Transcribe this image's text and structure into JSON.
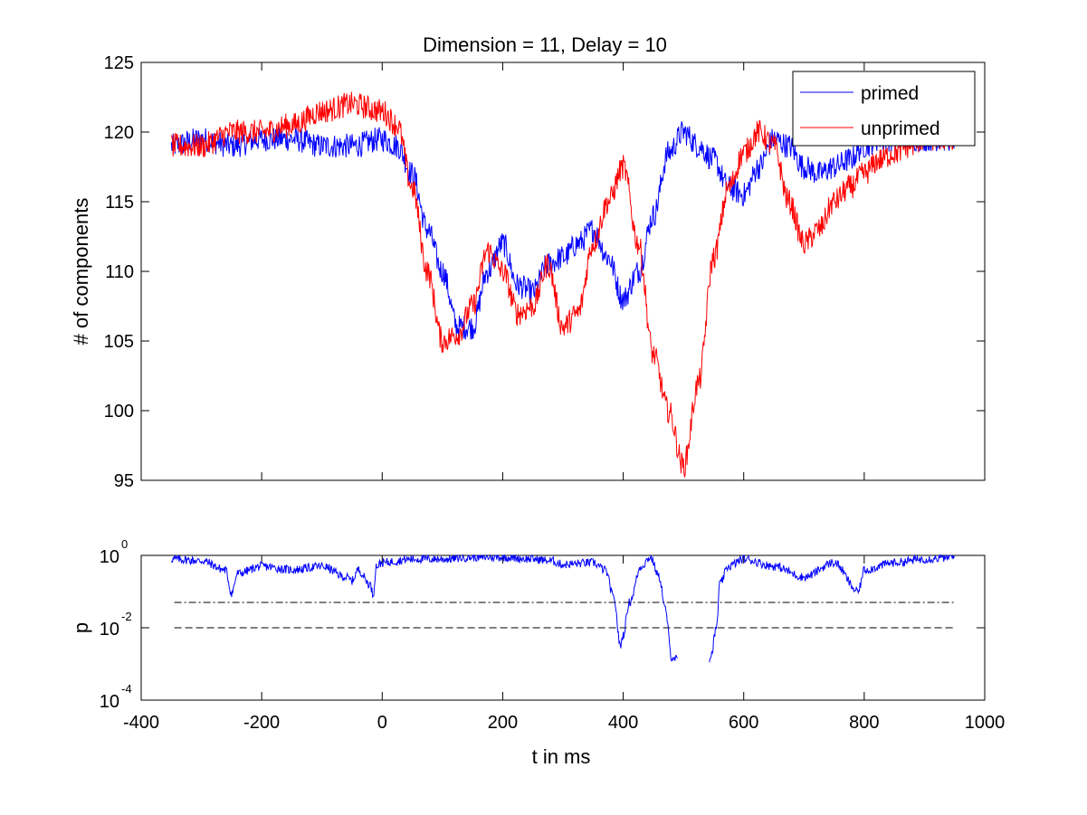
{
  "chart_data": [
    {
      "type": "line",
      "title": "Dimension  = 11, Delay = 10",
      "xlabel": "",
      "ylabel": "# of components",
      "xlim": [
        -400,
        1000
      ],
      "ylim": [
        95,
        125
      ],
      "yticks": [
        "95",
        "100",
        "105",
        "110",
        "115",
        "120",
        "125"
      ],
      "grid": false,
      "legend_position": "top-right",
      "series": [
        {
          "name": "primed",
          "color": "#0000ff",
          "x": [
            -350,
            -300,
            -250,
            -200,
            -150,
            -100,
            -50,
            0,
            25,
            50,
            75,
            100,
            125,
            150,
            175,
            200,
            225,
            250,
            275,
            300,
            325,
            350,
            375,
            400,
            425,
            450,
            475,
            500,
            525,
            550,
            575,
            600,
            625,
            650,
            675,
            700,
            725,
            750,
            775,
            800,
            825,
            850,
            875,
            900,
            925,
            950
          ],
          "y": [
            119,
            119.5,
            119,
            119.5,
            119.5,
            119,
            119,
            119.5,
            119,
            117,
            113,
            110,
            106,
            106,
            110,
            112,
            109,
            108.5,
            110.5,
            111,
            112,
            113,
            111,
            108,
            110,
            114,
            118.5,
            120,
            119,
            118,
            116,
            115.5,
            117.5,
            119.5,
            119,
            117.5,
            117,
            117.5,
            118,
            119,
            119.5,
            119.5,
            119.5,
            119.5,
            119.5,
            119.5
          ]
        },
        {
          "name": "unprimed",
          "color": "#ff0000",
          "x": [
            -350,
            -300,
            -250,
            -200,
            -150,
            -100,
            -50,
            0,
            25,
            50,
            75,
            100,
            125,
            150,
            175,
            200,
            225,
            250,
            275,
            300,
            325,
            350,
            375,
            400,
            425,
            450,
            475,
            500,
            525,
            550,
            575,
            600,
            625,
            650,
            675,
            700,
            725,
            750,
            775,
            800,
            825,
            850,
            875,
            900,
            925,
            950
          ],
          "y": [
            119,
            119,
            120,
            120,
            120.5,
            121.5,
            122,
            121.5,
            120.5,
            116,
            110,
            105,
            105.5,
            107.5,
            111.5,
            110,
            107,
            107.5,
            110.5,
            106,
            107,
            112,
            115,
            117.5,
            112,
            104,
            100,
            96,
            102,
            111,
            116,
            118.5,
            120,
            119,
            115,
            112,
            113,
            115,
            116,
            117,
            118,
            118.5,
            119,
            119.5,
            119.5,
            119.5
          ]
        }
      ]
    },
    {
      "type": "line",
      "title": "",
      "xlabel": "t in ms",
      "ylabel": "p",
      "xlim": [
        -400,
        1000
      ],
      "xticks": [
        "-400",
        "-200",
        "0",
        "200",
        "400",
        "600",
        "800",
        "1000"
      ],
      "y_scale": "log",
      "ylim_exponent": [
        -4,
        0
      ],
      "ytick_base": "10",
      "ytick_exponents": [
        "0",
        "-2",
        "-4"
      ],
      "grid": false,
      "series": [
        {
          "color": "#0000ff",
          "x": [
            -350,
            -300,
            -260,
            -250,
            -240,
            -200,
            -150,
            -100,
            -60,
            -50,
            -40,
            -20,
            -15,
            -10,
            0,
            50,
            100,
            150,
            200,
            250,
            280,
            300,
            350,
            370,
            385,
            395,
            400,
            410,
            430,
            445,
            460,
            470,
            480,
            500,
            520,
            540,
            545,
            555,
            560,
            575,
            600,
            650,
            700,
            750,
            790,
            800,
            850,
            900,
            950
          ],
          "log10p": [
            -0.1,
            -0.15,
            -0.4,
            -1.05,
            -0.5,
            -0.3,
            -0.4,
            -0.3,
            -0.6,
            -0.7,
            -0.4,
            -0.8,
            -1.1,
            -0.3,
            -0.2,
            -0.1,
            -0.1,
            -0.05,
            -0.05,
            -0.1,
            -0.15,
            -0.25,
            -0.2,
            -0.4,
            -1.2,
            -2.5,
            -2.2,
            -1.3,
            -0.3,
            -0.05,
            -0.6,
            -1.5,
            -2.8,
            -3.0,
            -3.0,
            -3.0,
            -2.8,
            -2.0,
            -0.8,
            -0.3,
            -0.1,
            -0.3,
            -0.6,
            -0.2,
            -1.0,
            -0.4,
            -0.2,
            -0.1,
            -0.05
          ]
        },
        {
          "style": "dash-dot",
          "color": "#000000",
          "x": [
            -345,
            950
          ],
          "log10p": [
            -1.301,
            -1.301
          ]
        },
        {
          "style": "dashed",
          "color": "#000000",
          "x": [
            -345,
            950
          ],
          "log10p": [
            -2,
            -2
          ]
        }
      ]
    }
  ]
}
